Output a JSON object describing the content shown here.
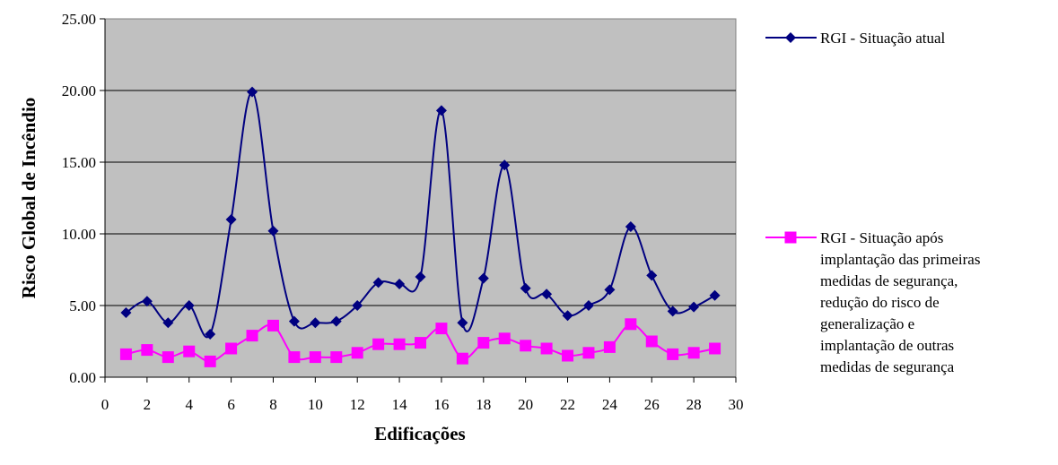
{
  "chart_data": {
    "type": "line",
    "xlabel": "Edificações",
    "ylabel": "Risco Global de Incêndio",
    "xlim": [
      0,
      30
    ],
    "ylim": [
      0,
      25
    ],
    "x_ticks": [
      "0",
      "2",
      "4",
      "6",
      "8",
      "10",
      "12",
      "14",
      "16",
      "18",
      "20",
      "22",
      "24",
      "26",
      "28",
      "30"
    ],
    "y_ticks": [
      "0.00",
      "5.00",
      "10.00",
      "15.00",
      "20.00",
      "25.00"
    ],
    "grid": "horizontal",
    "legend_position": "right",
    "plot_background": "#C0C0C0",
    "x": [
      1,
      2,
      3,
      4,
      5,
      6,
      7,
      8,
      9,
      10,
      11,
      12,
      13,
      14,
      15,
      16,
      17,
      18,
      19,
      20,
      21,
      22,
      23,
      24,
      25,
      26,
      27,
      28,
      29
    ],
    "series": [
      {
        "name": "RGI - Situação atual",
        "color": "#000080",
        "marker": "diamond",
        "legend_lines": [
          "RGI - Situação atual"
        ],
        "values": [
          4.5,
          5.3,
          3.8,
          5.0,
          3.0,
          11.0,
          19.9,
          10.2,
          3.9,
          3.8,
          3.9,
          5.0,
          6.6,
          6.5,
          7.0,
          18.6,
          3.8,
          6.9,
          14.8,
          6.2,
          5.8,
          4.3,
          5.0,
          6.1,
          10.5,
          7.1,
          4.6,
          4.9,
          5.7
        ]
      },
      {
        "name": "RGI - Situação após implantação das primeiras medidas de segurança, redução do risco de generalização e implantação de outras medidas de segurança",
        "color": "#FF00FF",
        "marker": "square",
        "legend_lines": [
          "RGI - Situação após",
          "implantação das primeiras",
          "medidas de segurança,",
          "redução do risco de",
          "generalização e",
          "implantação de outras",
          "medidas de segurança"
        ],
        "values": [
          1.6,
          1.9,
          1.4,
          1.8,
          1.1,
          2.0,
          2.9,
          3.6,
          1.4,
          1.4,
          1.4,
          1.7,
          2.3,
          2.3,
          2.4,
          3.4,
          1.3,
          2.4,
          2.7,
          2.2,
          2.0,
          1.5,
          1.7,
          2.1,
          3.7,
          2.5,
          1.6,
          1.7,
          2.0
        ]
      }
    ]
  }
}
